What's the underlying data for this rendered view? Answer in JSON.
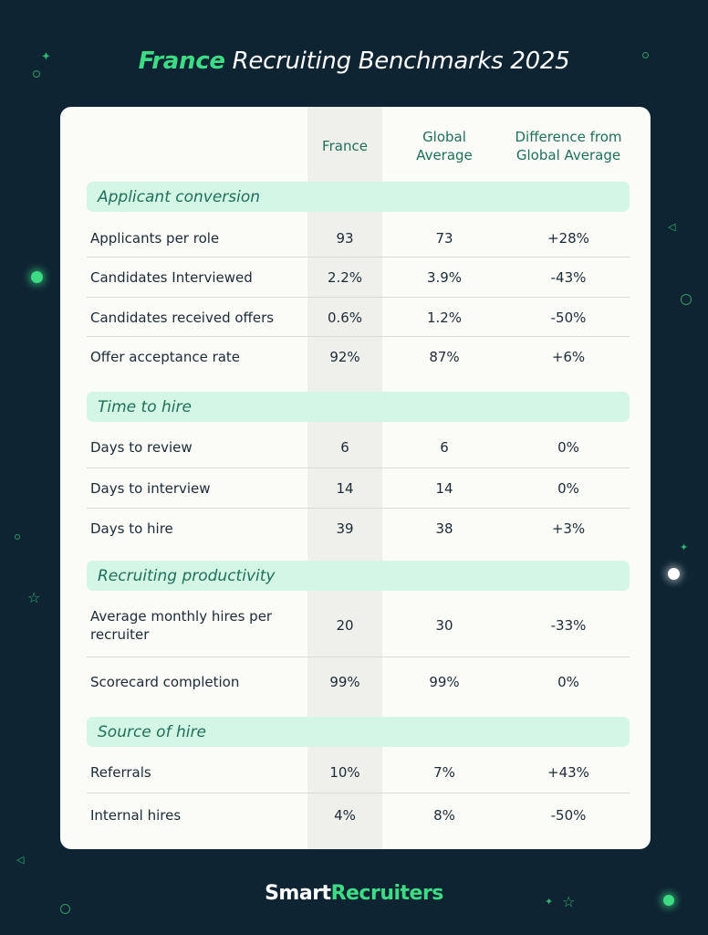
{
  "title": {
    "highlight": "France",
    "rest": " Recruiting Benchmarks 2025"
  },
  "columns": {
    "france": "France",
    "global": "Global Average",
    "diff": "Difference from Global Average"
  },
  "sections": [
    {
      "title": "Applicant conversion",
      "rows": [
        {
          "label": "Applicants per role",
          "france": "93",
          "global": "73",
          "diff": "+28%"
        },
        {
          "label": "Candidates Interviewed",
          "france": "2.2%",
          "global": "3.9%",
          "diff": "-43%"
        },
        {
          "label": "Candidates received offers",
          "france": "0.6%",
          "global": "1.2%",
          "diff": "-50%"
        },
        {
          "label": "Offer acceptance rate",
          "france": "92%",
          "global": "87%",
          "diff": "+6%"
        }
      ]
    },
    {
      "title": "Time to hire",
      "rows": [
        {
          "label": "Days to review",
          "france": "6",
          "global": "6",
          "diff": "0%"
        },
        {
          "label": "Days to interview",
          "france": "14",
          "global": "14",
          "diff": "0%"
        },
        {
          "label": "Days to hire",
          "france": "39",
          "global": "38",
          "diff": "+3%"
        }
      ]
    },
    {
      "title": "Recruiting productivity",
      "rows": [
        {
          "label": "Average monthly hires per recruiter",
          "france": "20",
          "global": "30",
          "diff": "-33%"
        },
        {
          "label": "Scorecard completion",
          "france": "99%",
          "global": "99%",
          "diff": "0%"
        }
      ]
    },
    {
      "title": "Source of hire",
      "rows": [
        {
          "label": "Referrals",
          "france": "10%",
          "global": "7%",
          "diff": "+43%"
        },
        {
          "label": "Internal hires",
          "france": "4%",
          "global": "8%",
          "diff": "-50%"
        }
      ]
    }
  ],
  "logo": {
    "part1": "Smart",
    "part2": "Recruiters"
  },
  "colors": {
    "background": "#0e2433",
    "accent": "#3ddc84",
    "section_fill": "#d3f7e4",
    "section_text": "#1f6f5c"
  }
}
